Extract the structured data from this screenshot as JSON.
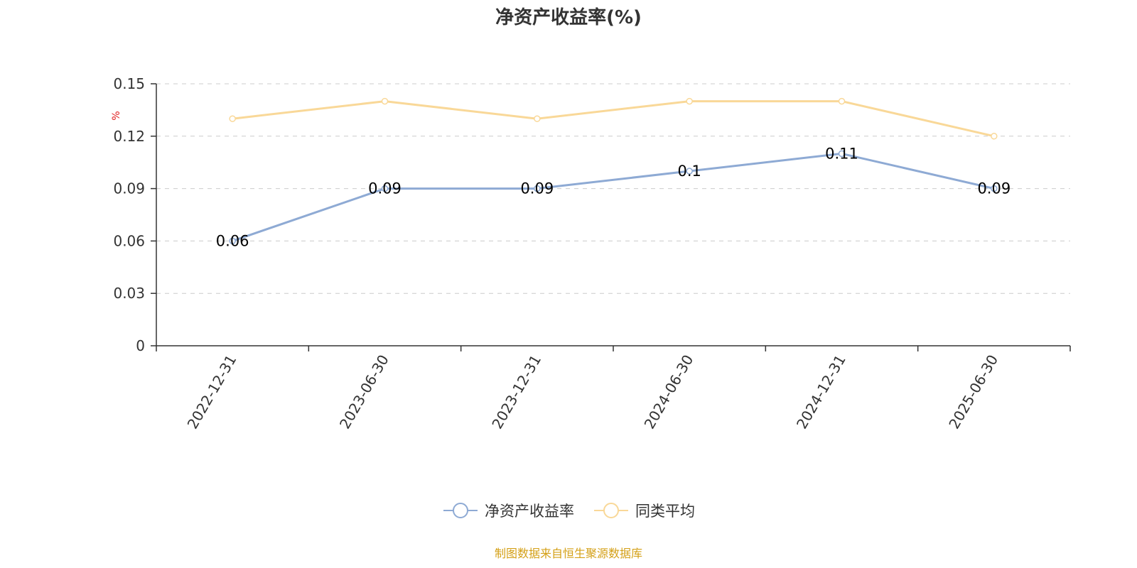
{
  "chart_data": {
    "type": "line",
    "title": "净资产收益率(%)",
    "ylabel": "%",
    "ylim": [
      0,
      0.15
    ],
    "yticks": [
      "0",
      "0.03",
      "0.06",
      "0.09",
      "0.12",
      "0.15"
    ],
    "categories": [
      "2022-12-31",
      "2023-06-30",
      "2023-12-31",
      "2024-06-30",
      "2024-12-31",
      "2025-06-30"
    ],
    "series": [
      {
        "name": "净资产收益率",
        "color": "#8eaad4",
        "values": [
          0.06,
          0.09,
          0.09,
          0.1,
          0.11,
          0.09
        ],
        "labels": [
          "0.06",
          "0.09",
          "0.09",
          "0.1",
          "0.11",
          "0.09"
        ]
      },
      {
        "name": "同类平均",
        "color": "#f9d898",
        "values": [
          0.13,
          0.14,
          0.13,
          0.14,
          0.14,
          0.12
        ]
      }
    ],
    "grid": true,
    "legend_position": "bottom"
  },
  "source": "制图数据来自恒生聚源数据库"
}
